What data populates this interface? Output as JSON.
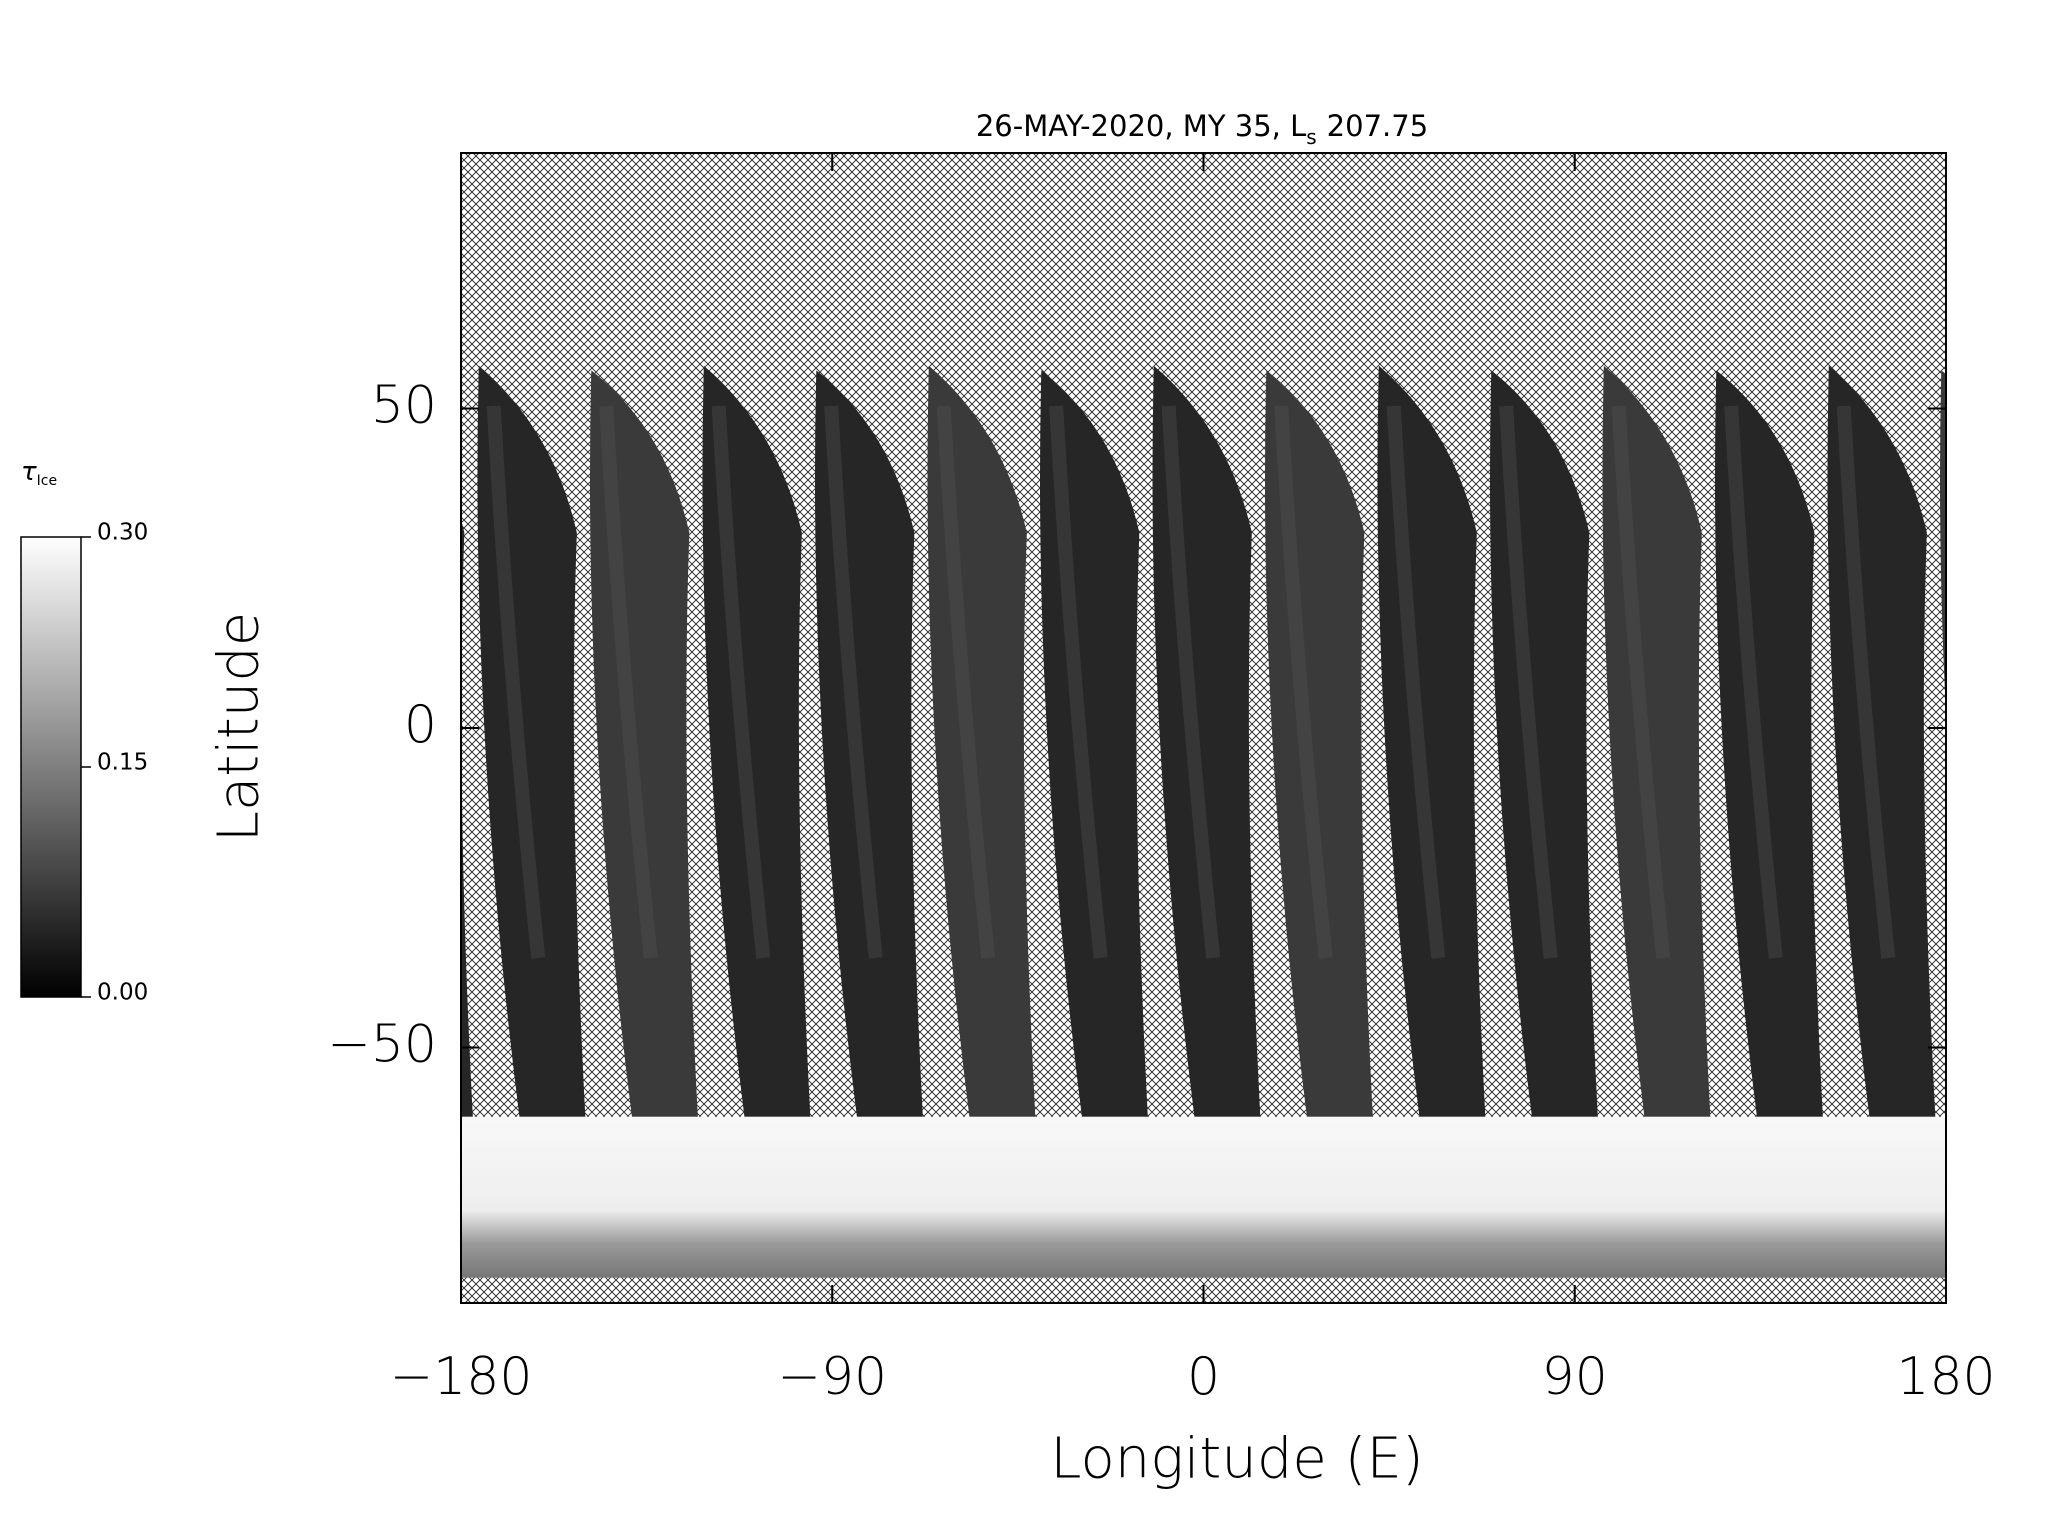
{
  "chart_data": {
    "type": "heatmap",
    "title": "26-MAY-2020, MY 35,  L",
    "title_subscript": "s",
    "title_suffix": "207.75",
    "xlabel": "Longitude (E)",
    "ylabel": "Latitude",
    "xlim": [
      -180,
      180
    ],
    "xticks": [
      -180,
      -90,
      0,
      90,
      180
    ],
    "ylim": [
      -90,
      90
    ],
    "yticks": [
      -50,
      0,
      50
    ],
    "colorbar": {
      "label": "τ",
      "label_subscript": "Ice",
      "zlim": [
        0,
        0.3
      ],
      "ticks": [
        {
          "value": 0,
          "label": "0.00"
        },
        {
          "value": 0.15,
          "label": "0.15"
        },
        {
          "value": 0.3,
          "label": "0.30"
        }
      ],
      "colors": [
        "#000000",
        "#ffffff"
      ]
    }
  }
}
